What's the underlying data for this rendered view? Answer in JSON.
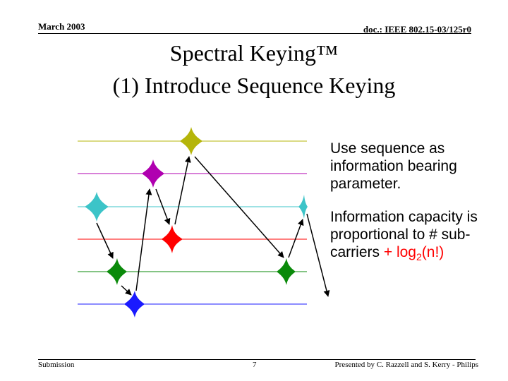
{
  "header": {
    "date": "March 2003",
    "doc_id": "doc.: IEEE 802.15-03/125r0"
  },
  "title": {
    "line1": "Spectral Keying™",
    "line2": "(1) Introduce Sequence Keying"
  },
  "bullets": {
    "b1": "Use sequence as information bearing parameter.",
    "b2_text": "Information capacity is proportional to # sub-carriers",
    "b2_plus": "+ log",
    "b2_sub": "2",
    "b2_tail": "(n!)"
  },
  "footer": {
    "left": "Submission",
    "page": "7",
    "right": "Presented by C. Razzell and S. Kerry - Philips"
  },
  "colors": {
    "accent": "#ff0000",
    "yellow": "#b5b50a",
    "magenta": "#b000b0",
    "cyan": "#3cc4c8",
    "red": "#ff0000",
    "green": "#0a8a0a",
    "blue": "#1a1aff"
  }
}
